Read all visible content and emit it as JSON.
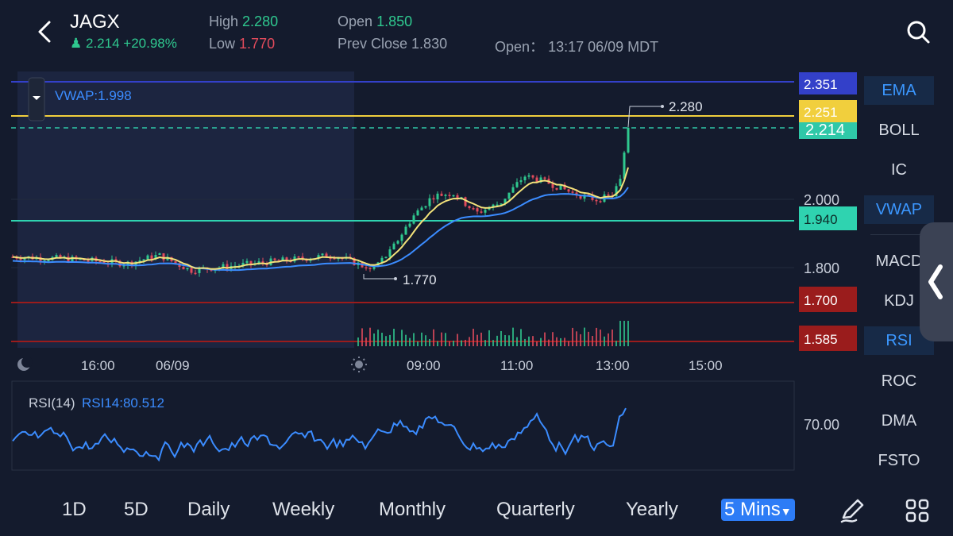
{
  "header": {
    "symbol": "JAGX",
    "last_price": "2.214",
    "change_pct": "+20.98%",
    "high_label": "High",
    "high_value": "2.280",
    "low_label": "Low",
    "low_value": "1.770",
    "open_label": "Open",
    "open_value": "1.850",
    "prev_close_label": "Prev Close",
    "prev_close_value": "1.830",
    "market_open_label": "Open：",
    "market_open_time": "13:17 06/09 MDT"
  },
  "chart": {
    "vwap_label": "VWAP:1.998",
    "high_annotation": "2.280",
    "low_annotation": "1.770",
    "price_ticks": [
      "2.000",
      "1.800"
    ],
    "price_tags": [
      {
        "text": "2.351",
        "bg": "#3340c9",
        "fg": "#ffffff"
      },
      {
        "text": "2.251",
        "bg": "#f1cf3d",
        "fg": "#ffffff"
      },
      {
        "text": "2.214",
        "bg": "#2fc8a8",
        "fg": "#ffffff"
      },
      {
        "text": "1.940",
        "bg": "#2fd3b0",
        "fg": "#0d2b27"
      },
      {
        "text": "1.700",
        "bg": "#9a1c1c",
        "fg": "#ffffff"
      },
      {
        "text": "1.585",
        "bg": "#9a1c1c",
        "fg": "#ffffff"
      }
    ],
    "time_labels": [
      "16:00",
      "06/09",
      "09:00",
      "11:00",
      "13:00",
      "15:00"
    ],
    "rsi_label": "RSI(14)",
    "rsi_value": "RSI14:80.512",
    "rsi_tick": "70.00"
  },
  "chart_data": {
    "type": "line",
    "series": [
      {
        "name": "VWAP:1.998",
        "color": "#3b8cff"
      }
    ],
    "price_range": [
      1.56,
      2.38
    ],
    "levels": {
      "resistance_1": 2.351,
      "resistance_2": 2.251,
      "last": 2.214,
      "support_1": 1.94,
      "support_2": 1.7,
      "support_3": 1.585
    },
    "high": 2.28,
    "low": 1.77,
    "rsi_current": 80.512
  },
  "indicators": {
    "items": [
      "EMA",
      "BOLL",
      "IC",
      "VWAP",
      "MACD",
      "KDJ",
      "RSI",
      "ROC",
      "DMA",
      "FSTO"
    ],
    "active": [
      "EMA",
      "VWAP",
      "RSI"
    ]
  },
  "timeframes": {
    "items": [
      "1D",
      "5D",
      "Daily",
      "Weekly",
      "Monthly",
      "Quarterly",
      "Yearly",
      "5 Mins"
    ],
    "selected": "5 Mins"
  },
  "colors": {
    "background": "#141b2d",
    "up": "#2fc88f",
    "down": "#e24b5c",
    "accent": "#2d7cf6",
    "ema": "#f2e27a",
    "vwap": "#3b8cff"
  },
  "icons": [
    "back-arrow-icon",
    "search-icon",
    "moon-icon",
    "sun-icon",
    "pen-icon",
    "grid-icon",
    "chevron-left-icon",
    "dropdown-icon"
  ]
}
